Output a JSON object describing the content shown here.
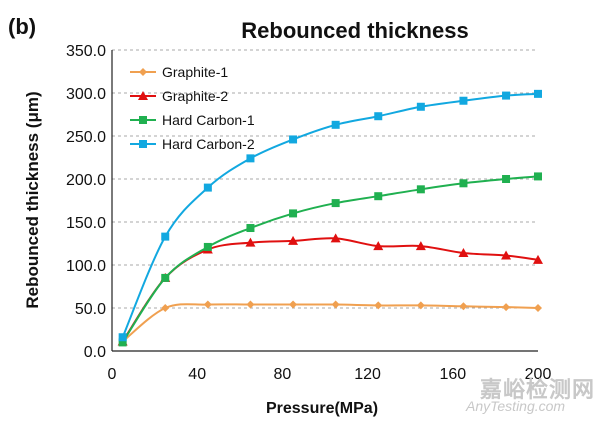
{
  "panel_label": "(b)",
  "watermark": {
    "line1": "嘉峪检测网",
    "line2": "AnyTesting.com"
  },
  "chart_data": {
    "type": "line",
    "title": "Rebounced thickness",
    "xlabel": "Pressure(MPa)",
    "ylabel": "Rebounced thickness (μm)",
    "xlim": [
      0,
      200
    ],
    "ylim": [
      0,
      350
    ],
    "xticks": [
      0,
      40,
      80,
      120,
      160,
      200
    ],
    "xtick_labels": [
      "0",
      "40",
      "80",
      "120",
      "160",
      "200"
    ],
    "yticks": [
      0,
      50,
      100,
      150,
      200,
      250,
      300,
      350
    ],
    "ytick_labels": [
      "0.0",
      "50.0",
      "100.0",
      "150.0",
      "200.0",
      "250.0",
      "300.0",
      "350.0"
    ],
    "grid": "horizontal-dashed",
    "legend_position": "top-left",
    "series": [
      {
        "name": "Graphite-1",
        "color": "#F0A050",
        "marker": "diamond",
        "x": [
          5,
          25,
          45,
          65,
          85,
          105,
          125,
          145,
          165,
          185,
          200
        ],
        "y": [
          11,
          50,
          54,
          54,
          54,
          54,
          53,
          53,
          52,
          51,
          50
        ]
      },
      {
        "name": "Graphite-2",
        "color": "#E01010",
        "marker": "triangle",
        "x": [
          5,
          25,
          45,
          65,
          85,
          105,
          125,
          145,
          165,
          185,
          200
        ],
        "y": [
          11,
          85,
          118,
          126,
          128,
          131,
          122,
          122,
          114,
          111,
          106
        ]
      },
      {
        "name": "Hard Carbon-1",
        "color": "#20B050",
        "marker": "square",
        "x": [
          5,
          25,
          45,
          65,
          85,
          105,
          125,
          145,
          165,
          185,
          200
        ],
        "y": [
          10,
          85,
          121,
          143,
          160,
          172,
          180,
          188,
          195,
          200,
          203
        ]
      },
      {
        "name": "Hard Carbon-2",
        "color": "#12A8E0",
        "marker": "square",
        "x": [
          5,
          25,
          45,
          65,
          85,
          105,
          125,
          145,
          165,
          185,
          200
        ],
        "y": [
          16,
          133,
          190,
          224,
          246,
          263,
          273,
          284,
          291,
          297,
          299
        ]
      }
    ]
  }
}
